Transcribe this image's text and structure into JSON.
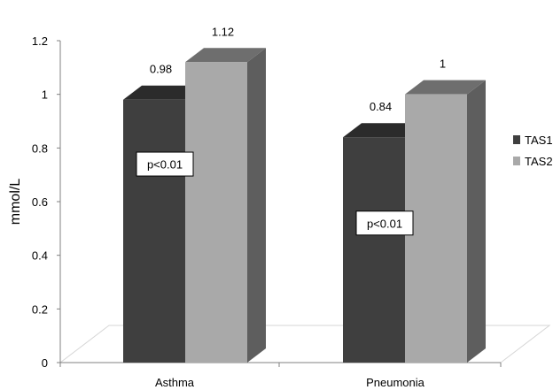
{
  "chart_data": {
    "type": "bar",
    "subtype": "3d-clustered-column",
    "categories": [
      "Asthma",
      "Pneumonia"
    ],
    "series": [
      {
        "name": "TAS1",
        "values": [
          0.98,
          0.84
        ],
        "color": "#3f3f3f",
        "top_color": "#2b2b2b",
        "side_color": "#2e2e2e"
      },
      {
        "name": "TAS2",
        "values": [
          1.12,
          1.0
        ],
        "color": "#a9a9a9",
        "top_color": "#6e6e6e",
        "side_color": "#5e5e5e"
      }
    ],
    "data_labels": [
      [
        "0.98",
        "0.84"
      ],
      [
        "1.12",
        "1"
      ]
    ],
    "ylabel": "mmol/L",
    "ylim": [
      0,
      1.2
    ],
    "yticks": [
      "0",
      "0.2",
      "0.4",
      "0.6",
      "0.8",
      "1",
      "1.2"
    ],
    "grid": false,
    "legend_position": "right",
    "annotations": [
      {
        "text": "p<0.01",
        "category": "Asthma",
        "value": 0.74
      },
      {
        "text": "p<0.01",
        "category": "Pneumonia",
        "value": 0.52
      }
    ]
  }
}
